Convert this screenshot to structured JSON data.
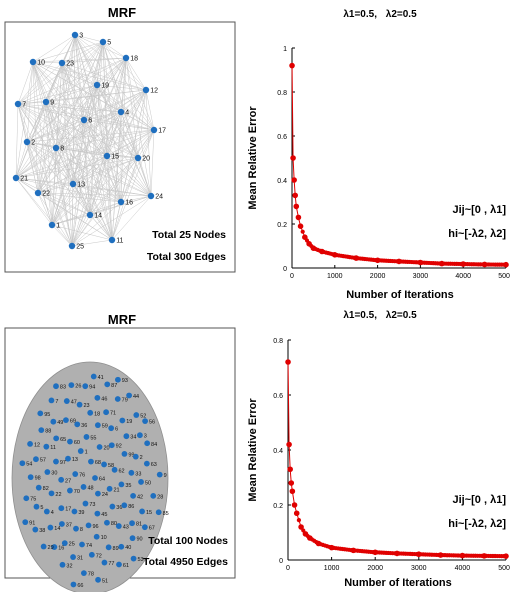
{
  "panels": [
    {
      "graph": {
        "title": "MRF",
        "caption_nodes": "Total 25 Nodes",
        "caption_edges": "Total 300 Edges",
        "node_color": "#1f6fbf",
        "edge_color": "#c8c8c8",
        "node_labels": [
          "3",
          "5",
          "10",
          "23",
          "18",
          "19",
          "12",
          "7",
          "9",
          "4",
          "6",
          "17",
          "2",
          "8",
          "15",
          "20",
          "21",
          "22",
          "13",
          "24",
          "16",
          "14",
          "1",
          "11",
          "25"
        ]
      },
      "chart_data": {
        "type": "line",
        "title_lambda1": "λ1=0.5,",
        "title_lambda2": "λ2=0.5",
        "xlabel": "Number of Iterations",
        "ylabel": "Mean Relative Error",
        "xlim": [
          0,
          5000
        ],
        "ylim": [
          0,
          1
        ],
        "xticks": [
          0,
          1000,
          2000,
          3000,
          4000,
          5000
        ],
        "yticks": [
          0,
          0.2,
          0.4,
          0.6,
          0.8,
          1
        ],
        "ytick_labels": [
          "0",
          "0.2",
          "0.4",
          "0.6",
          "0.8",
          "1"
        ],
        "legend_j": "Jij~[0 , λ1]",
        "legend_h": "hi~[-λ2, λ2]",
        "series_color": "#e00000",
        "x": [
          1,
          25,
          50,
          75,
          100,
          150,
          200,
          300,
          400,
          500,
          700,
          1000,
          1500,
          2000,
          2500,
          3000,
          3500,
          4000,
          4500,
          5000
        ],
        "y": [
          0.92,
          0.5,
          0.4,
          0.33,
          0.28,
          0.23,
          0.19,
          0.14,
          0.11,
          0.09,
          0.075,
          0.06,
          0.045,
          0.035,
          0.03,
          0.025,
          0.02,
          0.018,
          0.016,
          0.015
        ]
      }
    },
    {
      "graph": {
        "title": "MRF",
        "caption_nodes": "Total 100 Nodes",
        "caption_edges": "Total 4950 Edges",
        "node_color": "#1f6fbf",
        "edge_color": "#b0b0b0",
        "node_labels": [
          "64",
          "48",
          "68",
          "24",
          "76",
          "58",
          "73",
          "1",
          "21",
          "70",
          "20",
          "45",
          "13",
          "62",
          "39",
          "55",
          "36",
          "27",
          "92",
          "96",
          "60",
          "35",
          "17",
          "59",
          "80",
          "97",
          "99",
          "8",
          "36",
          "86",
          "22",
          "6",
          "10",
          "65",
          "33",
          "37",
          "18",
          "43",
          "30",
          "34",
          "74",
          "69",
          "42",
          "4",
          "71",
          "89",
          "11",
          "2",
          "25",
          "23",
          "81",
          "82",
          "19",
          "72",
          "49",
          "50",
          "14",
          "46",
          "40",
          "57",
          "3",
          "31",
          "47",
          "15",
          "5",
          "79",
          "77",
          "88",
          "63",
          "16",
          "94",
          "90",
          "98",
          "52",
          "78",
          "7",
          "28",
          "38",
          "87",
          "61",
          "12",
          "84",
          "32",
          "26",
          "67",
          "75",
          "44",
          "51",
          "95",
          "9",
          "29",
          "41",
          "53",
          "54",
          "56",
          "66",
          "83",
          "85",
          "91",
          "93"
        ]
      },
      "chart_data": {
        "type": "line",
        "title_lambda1": "λ1=0.5,",
        "title_lambda2": "λ2=0.5",
        "xlabel": "Number of Iterations",
        "ylabel": "Mean Relative Error",
        "xlim": [
          0,
          5000
        ],
        "ylim": [
          0,
          0.8
        ],
        "xticks": [
          0,
          1000,
          2000,
          3000,
          4000,
          5000
        ],
        "yticks": [
          0,
          0.2,
          0.4,
          0.6,
          0.8
        ],
        "ytick_labels": [
          "0",
          "0.2",
          "0.4",
          "0.6",
          "0.8"
        ],
        "legend_j": "Jij~[0 , λ1]",
        "legend_h": "hi~[-λ2, λ2]",
        "series_color": "#e00000",
        "x": [
          1,
          25,
          50,
          75,
          100,
          150,
          200,
          300,
          400,
          500,
          700,
          1000,
          1500,
          2000,
          2500,
          3000,
          3500,
          4000,
          4500,
          5000
        ],
        "y": [
          0.72,
          0.42,
          0.33,
          0.28,
          0.25,
          0.2,
          0.17,
          0.12,
          0.095,
          0.08,
          0.06,
          0.045,
          0.035,
          0.028,
          0.024,
          0.021,
          0.018,
          0.016,
          0.015,
          0.014
        ]
      }
    }
  ]
}
